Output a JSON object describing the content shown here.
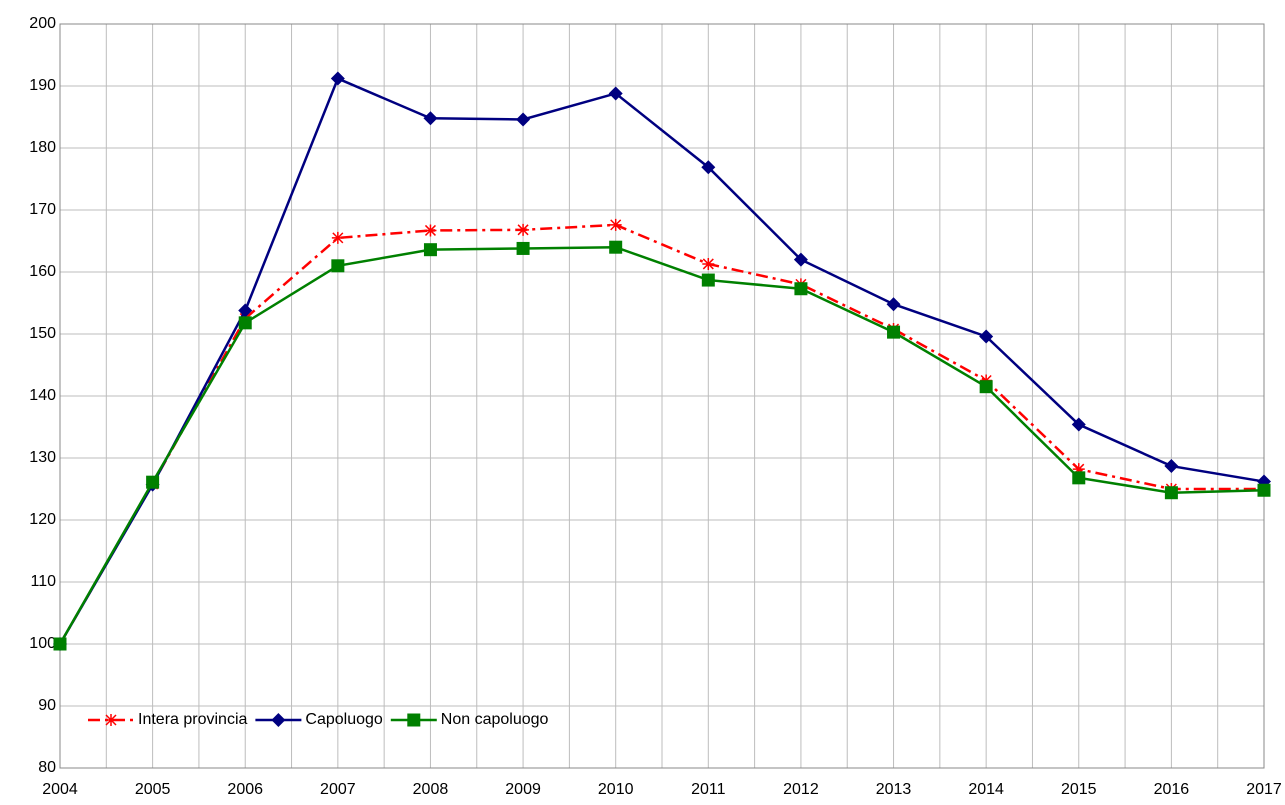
{
  "chart_data": {
    "type": "line",
    "x": [
      2004,
      2005,
      2006,
      2007,
      2008,
      2009,
      2010,
      2011,
      2012,
      2013,
      2014,
      2015,
      2016,
      2017
    ],
    "series": [
      {
        "name": "Intera provincia",
        "color": "#ff0000",
        "dash": "dashdot",
        "marker": "star",
        "values": [
          100,
          125.8,
          152.5,
          165.5,
          166.7,
          166.8,
          167.6,
          161.3,
          158,
          150.8,
          142.5,
          128.2,
          125,
          125
        ]
      },
      {
        "name": "Capoluogo",
        "color": "#000080",
        "dash": "solid",
        "marker": "diamond",
        "values": [
          100,
          125.7,
          153.8,
          191.2,
          184.8,
          184.6,
          188.8,
          176.9,
          162,
          154.8,
          149.6,
          135.4,
          128.7,
          126.2
        ]
      },
      {
        "name": "Non capoluogo",
        "color": "#008000",
        "dash": "solid",
        "marker": "square",
        "values": [
          100,
          126.1,
          151.8,
          161,
          163.6,
          163.8,
          164,
          158.7,
          157.3,
          150.3,
          141.5,
          126.8,
          124.4,
          124.8
        ]
      }
    ],
    "xlim": [
      2004,
      2017
    ],
    "xticks": [
      2004,
      2005,
      2006,
      2007,
      2008,
      2009,
      2010,
      2011,
      2012,
      2013,
      2014,
      2015,
      2016,
      2017
    ],
    "ylim": [
      80,
      200
    ],
    "yticks": [
      80,
      90,
      100,
      110,
      120,
      130,
      140,
      150,
      160,
      170,
      180,
      190,
      200
    ],
    "grid": true,
    "minor_xgrid": true,
    "legend": "lower left"
  }
}
